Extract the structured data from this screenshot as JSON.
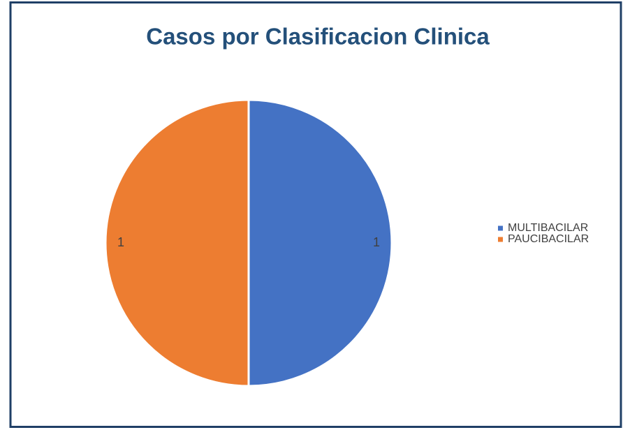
{
  "chart_data": {
    "type": "pie",
    "title": "Casos por Clasificacion Clinica",
    "categories": [
      "MULTIBACILAR",
      "PAUCIBACILAR"
    ],
    "values": [
      1,
      1
    ],
    "colors": [
      "#4472c4",
      "#ed7d31"
    ],
    "legend": "right"
  }
}
